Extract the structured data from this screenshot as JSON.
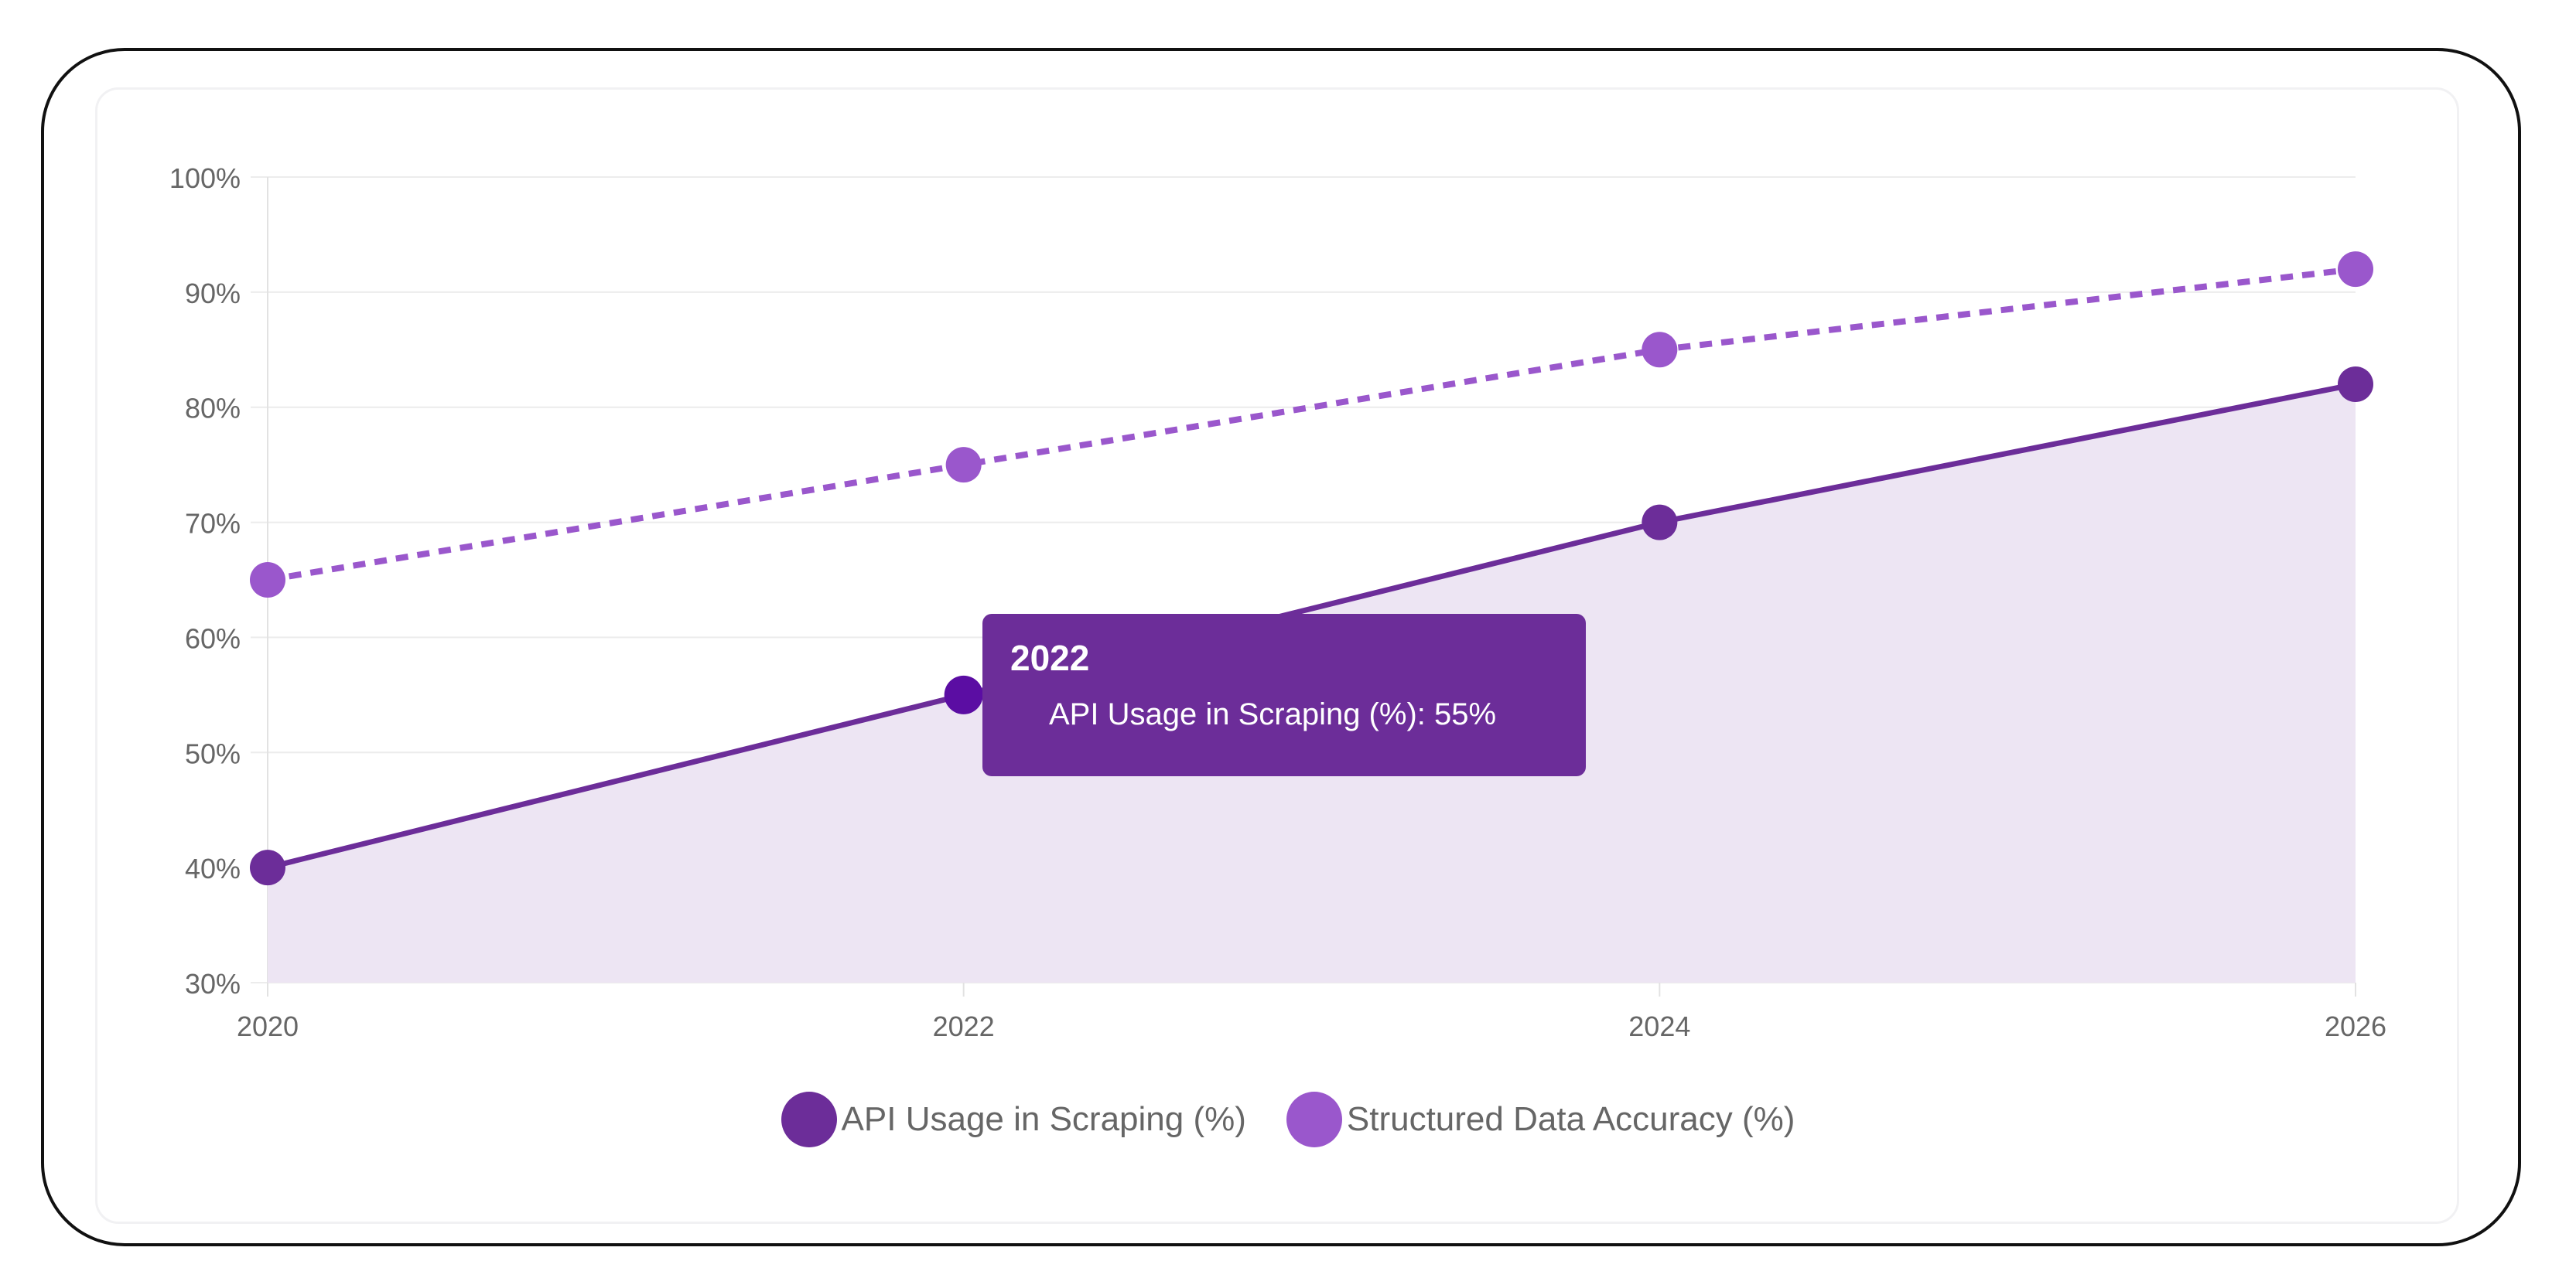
{
  "chart_data": {
    "type": "line",
    "x": [
      "2020",
      "2022",
      "2024",
      "2026"
    ],
    "ylim": [
      30,
      100
    ],
    "yticks": [
      "30%",
      "40%",
      "50%",
      "60%",
      "70%",
      "80%",
      "90%",
      "100%"
    ],
    "grid": true,
    "legend_position": "bottom",
    "series": [
      {
        "name": "API Usage in Scraping (%)",
        "values": [
          40,
          55,
          70,
          82
        ],
        "color": "#6c2d99",
        "fill": "#ede5f3",
        "style": "solid",
        "area": true
      },
      {
        "name": "Structured Data Accuracy (%)",
        "values": [
          65,
          75,
          85,
          92
        ],
        "color": "#9a57cc",
        "style": "dashed",
        "area": false
      }
    ]
  },
  "tooltip": {
    "title": "2022",
    "text": "API Usage in Scraping (%): 55%",
    "highlight_point_color": "#5b0da3"
  }
}
